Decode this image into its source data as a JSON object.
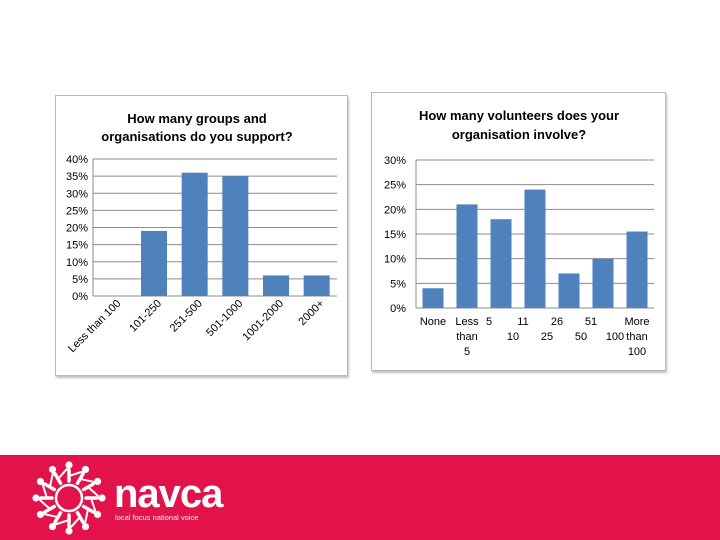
{
  "chart_data": [
    {
      "type": "bar",
      "title": "How many groups and organisations do you support?",
      "title_lines": [
        "How many groups and",
        "organisations do you support?"
      ],
      "categories": [
        "Less than 100",
        "101-250",
        "251-500",
        "501-1000",
        "1001-2000",
        "2000+"
      ],
      "values": [
        0,
        19,
        36,
        35,
        6,
        6
      ],
      "unit": "%",
      "ylim": [
        0,
        40
      ],
      "ytick_labels": [
        "0%",
        "5%",
        "10%",
        "15%",
        "20%",
        "25%",
        "30%",
        "35%",
        "40%"
      ],
      "xlabel": "",
      "ylabel": "",
      "grid": true,
      "color": "#4f81bd"
    },
    {
      "type": "bar",
      "title": "How many volunteers does your organisation involve?",
      "title_lines": [
        "How many volunteers does your",
        "organisation involve?"
      ],
      "categories": [
        "None",
        "Less than 5",
        "5 - 10",
        "11 - 25",
        "26 - 50",
        "51 - 100",
        "More than 100"
      ],
      "category_lines": [
        [
          "None"
        ],
        [
          "Less",
          "than",
          "5"
        ],
        [
          "5",
          "10"
        ],
        [
          "11",
          "25"
        ],
        [
          "26",
          "50"
        ],
        [
          "51",
          "100"
        ],
        [
          "More",
          "than",
          "100"
        ]
      ],
      "values": [
        4,
        21,
        18,
        24,
        7,
        10,
        15.5
      ],
      "unit": "%",
      "ylim": [
        0,
        30
      ],
      "ytick_labels": [
        "0%",
        "5%",
        "10%",
        "15%",
        "20%",
        "25%",
        "30%"
      ],
      "xlabel": "",
      "ylabel": "",
      "grid": true,
      "color": "#4f81bd"
    }
  ],
  "footer": {
    "brand": "navca",
    "tagline": "local focus national voice",
    "background_color": "#e2134b",
    "logo_icon": "people-circle-icon"
  }
}
